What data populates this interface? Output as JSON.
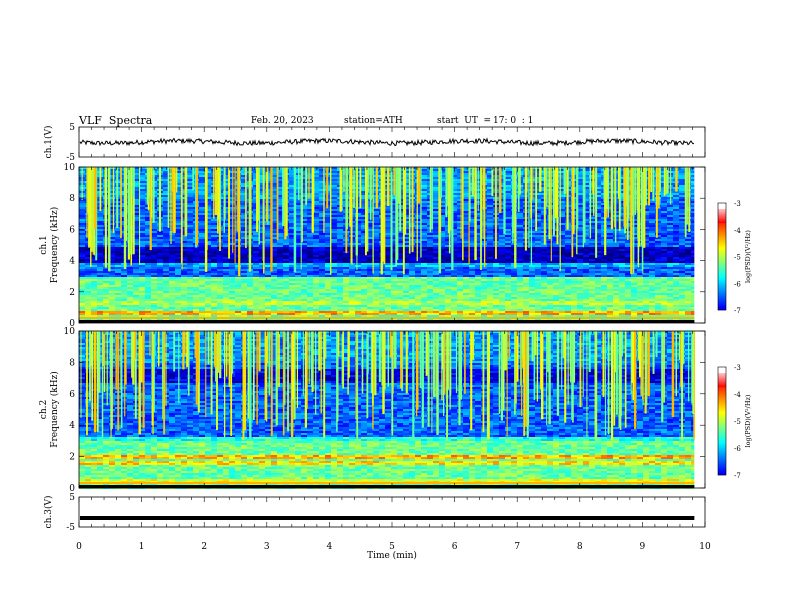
{
  "header": {
    "title": "VLF  Spectra",
    "date": "Feb. 20, 2023",
    "station": "station=ATH",
    "start_label": "start  UT  =",
    "start_time": "17: 0  : 1"
  },
  "chart_data": [
    {
      "type": "line",
      "name": "ch1-waveform",
      "ylabel": "ch.1(V)",
      "ylim": [
        -5,
        5
      ],
      "yticks": [
        "5",
        "-5"
      ],
      "xlim": [
        0,
        10
      ],
      "data_extent_min": 9.83,
      "level": 0
    },
    {
      "type": "heatmap",
      "name": "ch1-spectrogram",
      "ylabel_top": "ch.1",
      "ylabel": "Frequency  (kHz)",
      "ylim": [
        0,
        10
      ],
      "yticks": [
        "0",
        "2",
        "4",
        "6",
        "8",
        "10"
      ],
      "xlim": [
        0,
        10
      ],
      "data_extent_min": 9.83,
      "colorbar": {
        "label": "log(PSD)(V²/Hz)",
        "range": [
          -7,
          -3
        ],
        "ticks": [
          "-3",
          "-4",
          "-5",
          "-6",
          "-7"
        ]
      }
    },
    {
      "type": "heatmap",
      "name": "ch2-spectrogram",
      "ylabel_top": "ch.2",
      "ylabel": "Frequency  (kHz)",
      "ylim": [
        0,
        10
      ],
      "yticks": [
        "0",
        "2",
        "4",
        "6",
        "8",
        "10"
      ],
      "xlim": [
        0,
        10
      ],
      "data_extent_min": 9.83,
      "colorbar": {
        "label": "log(PSD)(V²/Hz)",
        "range": [
          -7,
          -3
        ],
        "ticks": [
          "-3",
          "-4",
          "-5",
          "-6",
          "-7"
        ]
      }
    },
    {
      "type": "line",
      "name": "ch3-waveform",
      "ylabel": "ch.3(V)",
      "ylim": [
        -5,
        5
      ],
      "yticks": [
        "5",
        "-5"
      ],
      "xlim": [
        0,
        10
      ],
      "data_extent_min": 9.83,
      "level": -2
    }
  ],
  "xaxis": {
    "label": "Time  (min)",
    "ticks": [
      "0",
      "1",
      "2",
      "3",
      "4",
      "5",
      "6",
      "7",
      "8",
      "9",
      "10"
    ]
  }
}
